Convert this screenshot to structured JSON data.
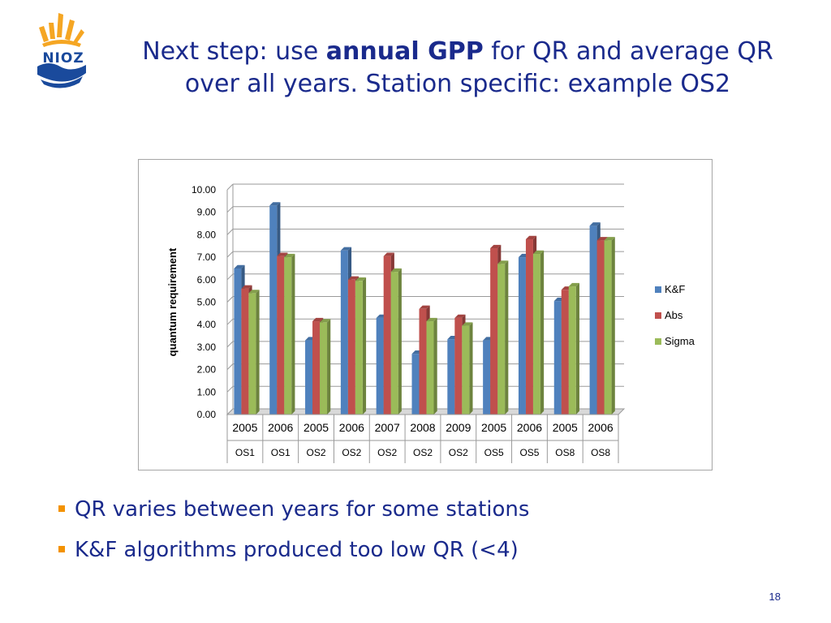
{
  "slide": {
    "title_pre": "Next step: use ",
    "title_bold": "annual GPP",
    "title_post": " for QR and average QR over all years. Station specific: example OS2",
    "page_number": "18"
  },
  "logo": {
    "text": "NIOZ"
  },
  "bullets": [
    "QR varies between years for some stations",
    "K&F algorithms produced too low QR (<4)"
  ],
  "colors": {
    "title": "#1a2a8c",
    "bullet_marker": "#f39200",
    "kf": "#4f81bd",
    "abs": "#c0504d",
    "sigma": "#9bbb59"
  },
  "chart_data": {
    "type": "bar",
    "title": "",
    "xlabel": "",
    "ylabel": "quantum requirement",
    "ylim": [
      0,
      10
    ],
    "y_ticks": [
      "0.00",
      "1.00",
      "2.00",
      "3.00",
      "4.00",
      "5.00",
      "6.00",
      "7.00",
      "8.00",
      "9.00",
      "10.00"
    ],
    "categories": [
      "2005",
      "2006",
      "2005",
      "2006",
      "2007",
      "2008",
      "2009",
      "2005",
      "2006",
      "2005",
      "2006"
    ],
    "groups": [
      "OS1",
      "OS1",
      "OS2",
      "OS2",
      "OS2",
      "OS2",
      "OS2",
      "OS5",
      "OS5",
      "OS8",
      "OS8"
    ],
    "series": [
      {
        "name": "K&F",
        "color": "#4f81bd",
        "values": [
          6.5,
          9.3,
          3.3,
          7.3,
          4.3,
          2.7,
          3.35,
          3.3,
          7.0,
          5.05,
          8.4
        ]
      },
      {
        "name": "Abs",
        "color": "#c0504d",
        "values": [
          5.6,
          7.05,
          4.15,
          6.0,
          7.05,
          4.7,
          4.3,
          7.4,
          7.8,
          5.55,
          7.75
        ]
      },
      {
        "name": "Sigma",
        "color": "#9bbb59",
        "values": [
          5.4,
          7.0,
          4.1,
          5.95,
          6.35,
          4.15,
          3.95,
          6.7,
          7.15,
          5.7,
          7.75
        ]
      }
    ],
    "legend_position": "right"
  }
}
